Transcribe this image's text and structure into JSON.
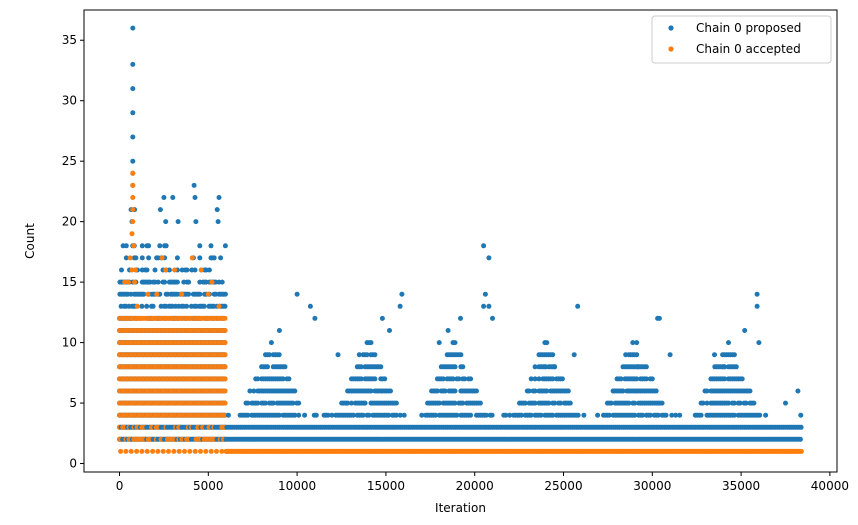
{
  "chart_data": {
    "type": "scatter",
    "title": "",
    "xlabel": "Iteration",
    "ylabel": "Count",
    "xlim": [
      -2000,
      40400
    ],
    "ylim": [
      -0.7,
      37.5
    ],
    "x_ticks": [
      0,
      5000,
      10000,
      15000,
      20000,
      25000,
      30000,
      35000,
      40000
    ],
    "x_tick_labels": [
      "0",
      "5000",
      "10000",
      "15000",
      "20000",
      "25000",
      "30000",
      "35000",
      "40000"
    ],
    "y_ticks": [
      0,
      5,
      10,
      15,
      20,
      25,
      30,
      35
    ],
    "y_tick_labels": [
      "0",
      "5",
      "10",
      "15",
      "20",
      "25",
      "30",
      "35"
    ],
    "grid": false,
    "legend_position": "top-right",
    "series": [
      {
        "name": "Chain 0 proposed",
        "color": "#1f77b4",
        "marker": "circle",
        "approximate_extent": {
          "x_max": 38400,
          "y_max": 36,
          "peak_x": 750
        },
        "bands": [
          {
            "x_start": 0,
            "x_end": 6000,
            "y_min": 2,
            "y_max": 18
          },
          {
            "x_start": 6000,
            "x_end": 38400,
            "y_min": 1,
            "y_max": 5
          }
        ],
        "points": [
          [
            750,
            36
          ],
          [
            750,
            33
          ],
          [
            750,
            31
          ],
          [
            750,
            29
          ],
          [
            750,
            27
          ],
          [
            750,
            25
          ],
          [
            750,
            24
          ],
          [
            750,
            23
          ],
          [
            650,
            21
          ],
          [
            850,
            21
          ],
          [
            700,
            20
          ],
          [
            2500,
            22
          ],
          [
            3000,
            22
          ],
          [
            4200,
            23
          ],
          [
            5600,
            22
          ],
          [
            2300,
            21
          ],
          [
            4250,
            22
          ],
          [
            5500,
            21
          ],
          [
            5550,
            20
          ],
          [
            4300,
            20
          ],
          [
            3300,
            20
          ],
          [
            2600,
            20
          ],
          [
            10000,
            14
          ],
          [
            10750,
            13
          ],
          [
            15900,
            14
          ],
          [
            15800,
            13
          ],
          [
            20500,
            18
          ],
          [
            20800,
            17
          ],
          [
            20600,
            14
          ],
          [
            20500,
            13
          ],
          [
            20800,
            13
          ],
          [
            25800,
            13
          ],
          [
            30300,
            12
          ],
          [
            30400,
            12
          ],
          [
            35900,
            14
          ],
          [
            35900,
            13
          ],
          [
            38200,
            6
          ],
          [
            25600,
            9
          ],
          [
            28500,
            9
          ],
          [
            31000,
            9
          ],
          [
            33500,
            9
          ],
          [
            12300,
            9
          ],
          [
            13500,
            9
          ],
          [
            9000,
            11
          ],
          [
            11000,
            12
          ],
          [
            14800,
            12
          ],
          [
            15200,
            11
          ],
          [
            18000,
            10
          ],
          [
            18500,
            11
          ],
          [
            19200,
            12
          ],
          [
            21000,
            12
          ],
          [
            24000,
            8
          ],
          [
            24500,
            8
          ],
          [
            27800,
            6
          ],
          [
            29200,
            8
          ],
          [
            34000,
            8
          ],
          [
            35200,
            11
          ],
          [
            36000,
            10
          ],
          [
            37500,
            5
          ]
        ]
      },
      {
        "name": "Chain 0 accepted",
        "color": "#ff7f0e",
        "marker": "circle",
        "approximate_extent": {
          "x_max": 38400,
          "y_max": 24,
          "peak_x": 750
        },
        "bands": [
          {
            "x_start": 0,
            "x_end": 6000,
            "y_min": 2,
            "y_max": 12
          },
          {
            "x_start": 6000,
            "x_end": 38400,
            "y_min": 1,
            "y_max": 1
          }
        ],
        "points": [
          [
            750,
            24
          ],
          [
            750,
            23
          ],
          [
            750,
            22
          ],
          [
            750,
            21
          ],
          [
            750,
            20
          ],
          [
            700,
            19
          ],
          [
            800,
            18
          ],
          [
            600,
            17
          ],
          [
            700,
            16
          ],
          [
            900,
            16
          ],
          [
            300,
            15
          ],
          [
            500,
            15
          ],
          [
            850,
            15
          ],
          [
            2400,
            17
          ],
          [
            2600,
            16
          ],
          [
            3100,
            16
          ],
          [
            4100,
            17
          ],
          [
            4600,
            16
          ],
          [
            5200,
            15
          ],
          [
            1600,
            14
          ],
          [
            2100,
            14
          ],
          [
            3500,
            14
          ],
          [
            5000,
            14
          ],
          [
            5600,
            13
          ],
          [
            1000,
            13
          ]
        ]
      }
    ]
  }
}
